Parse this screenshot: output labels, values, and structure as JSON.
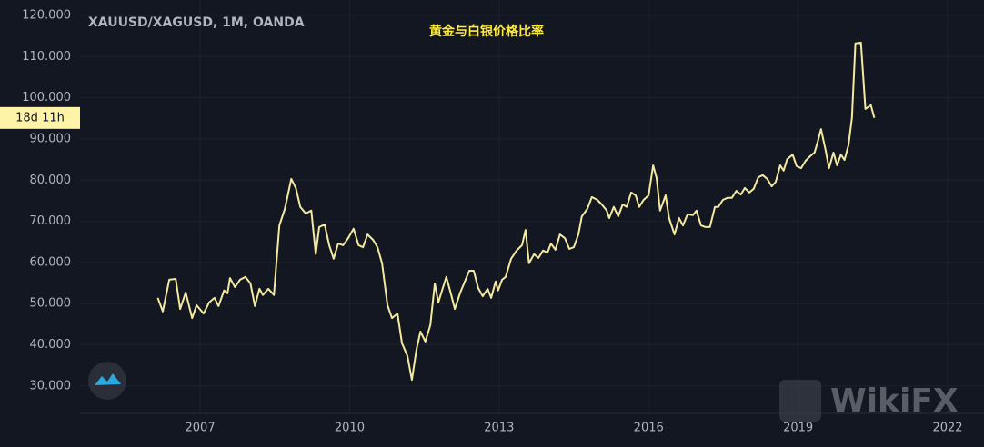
{
  "chart_data": {
    "type": "line",
    "title": "XAUUSD/XAGUSD, 1M, OANDA",
    "subtitle": "黄金与白银价格比率",
    "countdown_label": "18d 11h",
    "watermark": "WikiFX",
    "xlim": [
      2004.59,
      2022.73
    ],
    "ylim": [
      23.35,
      123.75
    ],
    "xticks": [
      2007,
      2010,
      2013,
      2016,
      2019,
      2022
    ],
    "yticks": [
      {
        "value": 30,
        "label": "30.000"
      },
      {
        "value": 40,
        "label": "40.000"
      },
      {
        "value": 50,
        "label": "50.000"
      },
      {
        "value": 60,
        "label": "60.000"
      },
      {
        "value": 70,
        "label": "70.000"
      },
      {
        "value": 80,
        "label": "80.000"
      },
      {
        "value": 90,
        "label": "90.000"
      },
      {
        "value": 100,
        "label": "100.000"
      },
      {
        "value": 110,
        "label": "110.000"
      },
      {
        "value": 120,
        "label": "120.000"
      }
    ],
    "grid": true,
    "x": [
      2006.15,
      2006.25,
      2006.38,
      2006.51,
      2006.6,
      2006.71,
      2006.84,
      2006.93,
      2007.07,
      2007.18,
      2007.29,
      2007.37,
      2007.48,
      2007.55,
      2007.6,
      2007.7,
      2007.8,
      2007.91,
      2008.01,
      2008.1,
      2008.19,
      2008.26,
      2008.37,
      2008.48,
      2008.59,
      2008.7,
      2008.83,
      2008.92,
      2009.01,
      2009.12,
      2009.23,
      2009.32,
      2009.39,
      2009.5,
      2009.59,
      2009.68,
      2009.77,
      2009.87,
      2009.97,
      2010.08,
      2010.18,
      2010.27,
      2010.36,
      2010.47,
      2010.56,
      2010.65,
      2010.76,
      2010.85,
      2010.96,
      2011.05,
      2011.16,
      2011.25,
      2011.34,
      2011.42,
      2011.52,
      2011.62,
      2011.71,
      2011.78,
      2011.87,
      2011.94,
      2012.04,
      2012.11,
      2012.22,
      2012.29,
      2012.4,
      2012.49,
      2012.58,
      2012.67,
      2012.77,
      2012.84,
      2012.93,
      2012.98,
      2013.06,
      2013.13,
      2013.24,
      2013.35,
      2013.46,
      2013.53,
      2013.6,
      2013.7,
      2013.79,
      2013.88,
      2013.97,
      2014.04,
      2014.13,
      2014.22,
      2014.32,
      2014.41,
      2014.5,
      2014.59,
      2014.66,
      2014.77,
      2014.86,
      2014.97,
      2015.06,
      2015.16,
      2015.21,
      2015.3,
      2015.39,
      2015.48,
      2015.56,
      2015.65,
      2015.74,
      2015.81,
      2015.9,
      2016.0,
      2016.09,
      2016.16,
      2016.23,
      2016.34,
      2016.41,
      2016.52,
      2016.61,
      2016.69,
      2016.78,
      2016.89,
      2016.96,
      2017.05,
      2017.14,
      2017.23,
      2017.33,
      2017.4,
      2017.49,
      2017.58,
      2017.67,
      2017.76,
      2017.85,
      2017.93,
      2018.02,
      2018.11,
      2018.2,
      2018.29,
      2018.38,
      2018.47,
      2018.55,
      2018.64,
      2018.71,
      2018.78,
      2018.89,
      2018.97,
      2019.06,
      2019.15,
      2019.24,
      2019.33,
      2019.4,
      2019.46,
      2019.55,
      2019.62,
      2019.71,
      2019.78,
      2019.86,
      2019.93,
      2020.01,
      2020.08,
      2020.15,
      2020.26,
      2020.35,
      2020.46,
      2020.53
    ],
    "series": [
      {
        "name": "XAUUSD/XAGUSD",
        "color": "#f3e9a0",
        "values": [
          51.4,
          48.1,
          55.8,
          56.0,
          48.7,
          52.7,
          46.5,
          49.6,
          47.6,
          50.3,
          51.4,
          49.4,
          53.2,
          52.5,
          56.2,
          54.0,
          55.8,
          56.5,
          54.9,
          49.4,
          53.6,
          52.1,
          53.6,
          52.1,
          69.0,
          73.0,
          80.3,
          78.1,
          73.5,
          71.9,
          72.6,
          62.0,
          68.6,
          69.2,
          64.2,
          60.9,
          64.6,
          64.2,
          65.9,
          68.2,
          64.2,
          63.7,
          66.8,
          65.5,
          63.7,
          59.8,
          49.6,
          46.5,
          47.6,
          40.4,
          37.3,
          31.5,
          38.8,
          43.2,
          40.8,
          44.8,
          54.9,
          50.3,
          53.8,
          56.5,
          52.1,
          48.7,
          52.7,
          54.7,
          58.0,
          58.0,
          53.8,
          51.8,
          53.6,
          51.4,
          55.4,
          53.2,
          55.8,
          56.5,
          60.9,
          62.9,
          64.2,
          67.9,
          59.8,
          62.0,
          61.1,
          62.9,
          62.4,
          64.6,
          63.1,
          66.8,
          65.9,
          63.3,
          63.7,
          66.8,
          71.2,
          73.0,
          75.9,
          75.2,
          74.1,
          72.6,
          70.8,
          73.5,
          71.2,
          74.1,
          73.5,
          77.0,
          76.3,
          73.5,
          75.2,
          76.3,
          83.6,
          80.5,
          72.6,
          76.3,
          70.8,
          66.8,
          70.8,
          69.0,
          71.7,
          71.5,
          72.6,
          69.0,
          68.6,
          68.6,
          73.5,
          73.5,
          75.2,
          75.7,
          75.7,
          77.4,
          76.5,
          78.1,
          77.0,
          77.9,
          80.7,
          81.2,
          80.3,
          78.5,
          79.6,
          83.6,
          82.3,
          85.1,
          86.2,
          83.4,
          82.9,
          84.7,
          85.8,
          86.7,
          89.6,
          92.4,
          87.4,
          82.9,
          86.7,
          83.6,
          86.2,
          84.9,
          88.5,
          95.1,
          113.2,
          113.4,
          97.3,
          98.2,
          95.1
        ]
      }
    ]
  }
}
